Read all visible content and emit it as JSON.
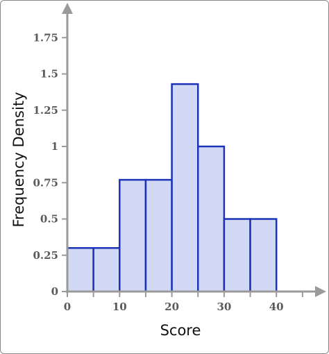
{
  "chart_data": {
    "type": "bar",
    "subtype": "histogram",
    "xlabel": "Score",
    "ylabel": "Frequency Density",
    "xlim": [
      0,
      45
    ],
    "ylim": [
      0,
      1.95
    ],
    "x_ticks": [
      0,
      10,
      20,
      30,
      40
    ],
    "x_minor_ticks": [
      5,
      15,
      25,
      35,
      45
    ],
    "y_ticks": [
      {
        "value": 0,
        "label": "0"
      },
      {
        "value": 0.25,
        "label": "0.25"
      },
      {
        "value": 0.5,
        "label": "0.5"
      },
      {
        "value": 0.75,
        "label": "0.75"
      },
      {
        "value": 1,
        "label": "1"
      },
      {
        "value": 1.25,
        "label": "1.25"
      },
      {
        "value": 1.5,
        "label": "1.5"
      },
      {
        "value": 1.75,
        "label": "1.75"
      }
    ],
    "bins": [
      {
        "start": 0,
        "end": 5,
        "value": 0.3
      },
      {
        "start": 5,
        "end": 10,
        "value": 0.3
      },
      {
        "start": 10,
        "end": 15,
        "value": 0.77
      },
      {
        "start": 15,
        "end": 20,
        "value": 0.77
      },
      {
        "start": 20,
        "end": 25,
        "value": 1.43
      },
      {
        "start": 25,
        "end": 30,
        "value": 1.0
      },
      {
        "start": 30,
        "end": 35,
        "value": 0.5
      },
      {
        "start": 35,
        "end": 40,
        "value": 0.5
      }
    ],
    "grid": false,
    "colors": {
      "bar_fill": "#d1d9f5",
      "bar_stroke": "#1c33b8",
      "axis": "#9a9a9a"
    }
  }
}
